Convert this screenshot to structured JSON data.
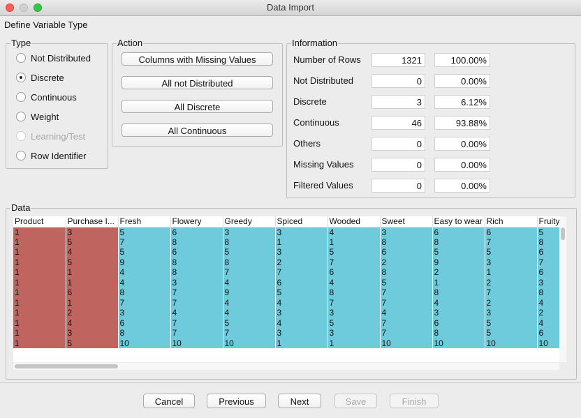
{
  "window_title": "Data Import",
  "section_title": "Define Variable Type",
  "type_group": {
    "title": "Type",
    "options": [
      {
        "label": "Not Distributed",
        "selected": false,
        "disabled": false
      },
      {
        "label": "Discrete",
        "selected": true,
        "disabled": false
      },
      {
        "label": "Continuous",
        "selected": false,
        "disabled": false
      },
      {
        "label": "Weight",
        "selected": false,
        "disabled": false
      },
      {
        "label": "Learning/Test",
        "selected": false,
        "disabled": true
      },
      {
        "label": "Row Identifier",
        "selected": false,
        "disabled": false
      }
    ]
  },
  "action_group": {
    "title": "Action",
    "buttons": [
      "Columns with Missing Values",
      "All not Distributed",
      "All Discrete",
      "All Continuous"
    ]
  },
  "information": {
    "title": "Information",
    "rows": [
      {
        "label": "Number of Rows",
        "count": "1321",
        "percent": "100.00%"
      },
      {
        "label": "Not Distributed",
        "count": "0",
        "percent": "0.00%"
      },
      {
        "label": "Discrete",
        "count": "3",
        "percent": "6.12%"
      },
      {
        "label": "Continuous",
        "count": "46",
        "percent": "93.88%"
      },
      {
        "label": "Others",
        "count": "0",
        "percent": "0.00%"
      },
      {
        "label": "Missing Values",
        "count": "0",
        "percent": "0.00%"
      },
      {
        "label": "Filtered Values",
        "count": "0",
        "percent": "0.00%"
      }
    ]
  },
  "data_table": {
    "title": "Data",
    "columns": [
      {
        "label": "Product",
        "color": "#c0645f"
      },
      {
        "label": "Purchase I...",
        "color": "#c0645f"
      },
      {
        "label": "Fresh",
        "color": "#6ecbdb"
      },
      {
        "label": "Flowery",
        "color": "#6ecbdb"
      },
      {
        "label": "Greedy",
        "color": "#6ecbdb"
      },
      {
        "label": "Spiced",
        "color": "#6ecbdb"
      },
      {
        "label": "Wooded",
        "color": "#6ecbdb"
      },
      {
        "label": "Sweet",
        "color": "#6ecbdb"
      },
      {
        "label": "Easy to wear",
        "color": "#6ecbdb"
      },
      {
        "label": "Rich",
        "color": "#6ecbdb"
      },
      {
        "label": "Fruity",
        "color": "#6ecbdb"
      }
    ],
    "rows": [
      [
        "1",
        "3",
        "5",
        "6",
        "3",
        "3",
        "4",
        "3",
        "6",
        "6",
        "5"
      ],
      [
        "1",
        "5",
        "7",
        "8",
        "8",
        "1",
        "1",
        "8",
        "8",
        "7",
        "8"
      ],
      [
        "1",
        "4",
        "5",
        "6",
        "5",
        "3",
        "5",
        "6",
        "5",
        "5",
        "6"
      ],
      [
        "1",
        "5",
        "9",
        "8",
        "8",
        "2",
        "7",
        "2",
        "9",
        "3",
        "7"
      ],
      [
        "1",
        "1",
        "4",
        "8",
        "7",
        "7",
        "6",
        "8",
        "2",
        "1",
        "6"
      ],
      [
        "1",
        "1",
        "4",
        "3",
        "4",
        "6",
        "4",
        "5",
        "1",
        "2",
        "3"
      ],
      [
        "1",
        "6",
        "8",
        "7",
        "9",
        "5",
        "8",
        "7",
        "8",
        "7",
        "8"
      ],
      [
        "1",
        "1",
        "7",
        "7",
        "4",
        "4",
        "7",
        "7",
        "4",
        "2",
        "4"
      ],
      [
        "1",
        "2",
        "3",
        "4",
        "4",
        "3",
        "3",
        "4",
        "3",
        "3",
        "2"
      ],
      [
        "1",
        "4",
        "6",
        "7",
        "5",
        "4",
        "5",
        "7",
        "6",
        "5",
        "4"
      ],
      [
        "1",
        "3",
        "8",
        "7",
        "7",
        "3",
        "3",
        "7",
        "8",
        "5",
        "6"
      ],
      [
        "1",
        "5",
        "10",
        "10",
        "10",
        "1",
        "1",
        "10",
        "10",
        "10",
        "10"
      ]
    ]
  },
  "footer_buttons": [
    {
      "label": "Cancel",
      "disabled": false
    },
    {
      "label": "Previous",
      "disabled": false
    },
    {
      "label": "Next",
      "disabled": false
    },
    {
      "label": "Save",
      "disabled": true
    },
    {
      "label": "Finish",
      "disabled": true
    }
  ]
}
